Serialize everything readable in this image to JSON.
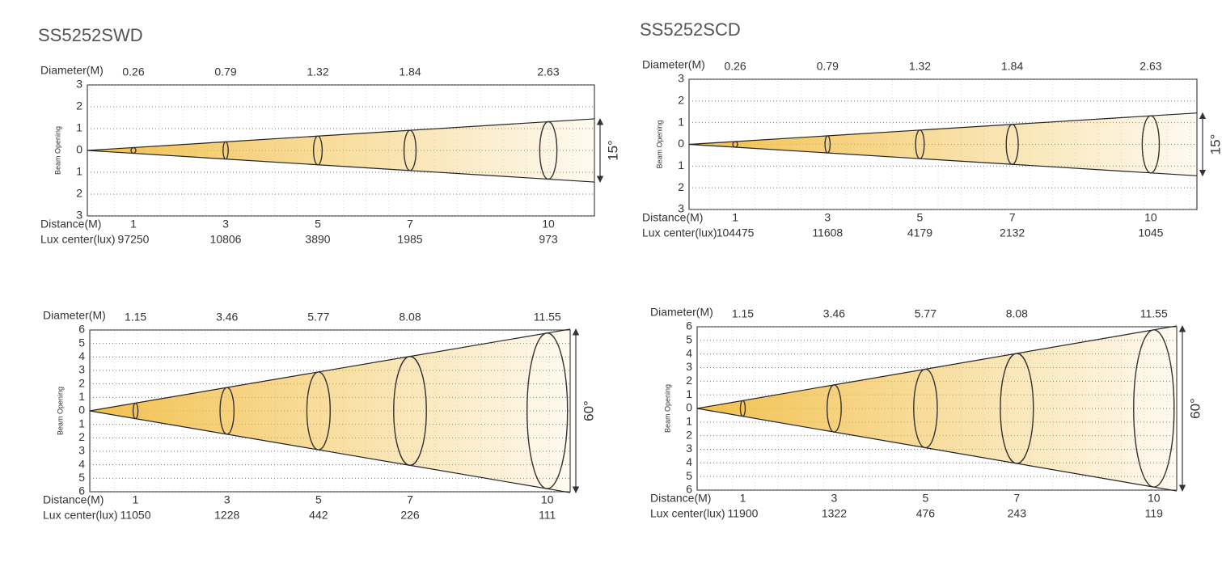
{
  "chart_data": [
    {
      "type": "beam",
      "title": "SS5252SWD",
      "beam_angle_label": "15°",
      "y_label": "Beam Opening",
      "diameter_label": "Diameter(M)",
      "distance_label": "Distance(M)",
      "lux_label": "Lux center(lux)",
      "distances": [
        1,
        3,
        5,
        7,
        10
      ],
      "diameters": [
        0.26,
        0.79,
        1.32,
        1.84,
        2.63
      ],
      "lux": [
        97250,
        10806,
        3890,
        1985,
        973
      ],
      "xlim": [
        0,
        11
      ],
      "ylim": [
        -3,
        3
      ],
      "yticks": [
        {
          "value": 3,
          "label": "3"
        },
        {
          "value": 2,
          "label": "2"
        },
        {
          "value": 1,
          "label": "1"
        },
        0,
        {
          "value": -1,
          "label": "1"
        },
        {
          "value": -2,
          "label": "2"
        },
        {
          "value": -3,
          "label": "3"
        }
      ],
      "color": "#f2c14e"
    },
    {
      "type": "beam",
      "title": "SS5252SCD",
      "beam_angle_label": "15°",
      "y_label": "Beam Opening",
      "diameter_label": "Diameter(M)",
      "distance_label": "Distance(M)",
      "lux_label": "Lux center(lux)",
      "distances": [
        1,
        3,
        5,
        7,
        10
      ],
      "diameters": [
        0.26,
        0.79,
        1.32,
        1.84,
        2.63
      ],
      "lux": [
        104475,
        11608,
        4179,
        2132,
        1045
      ],
      "xlim": [
        0,
        11
      ],
      "ylim": [
        -3,
        3
      ],
      "yticks": [
        {
          "value": 3,
          "label": "3"
        },
        {
          "value": 2,
          "label": "2"
        },
        {
          "value": 1,
          "label": "1"
        },
        0,
        {
          "value": -1,
          "label": "1"
        },
        {
          "value": -2,
          "label": "2"
        },
        {
          "value": -3,
          "label": "3"
        }
      ],
      "color": "#f2c14e"
    },
    {
      "type": "beam",
      "beam_angle_label": "60°",
      "y_label": "Beam Opening",
      "diameter_label": "Diameter(M)",
      "distance_label": "Distance(M)",
      "lux_label": "Lux center(lux)",
      "distances": [
        1,
        3,
        5,
        7,
        10
      ],
      "diameters": [
        1.15,
        3.46,
        5.77,
        8.08,
        11.55
      ],
      "lux": [
        11050,
        1228,
        442,
        226,
        111
      ],
      "xlim": [
        0,
        10.5
      ],
      "ylim": [
        -6,
        6
      ],
      "yticks": [
        {
          "value": 6,
          "label": "6"
        },
        {
          "value": 5,
          "label": "5"
        },
        {
          "value": 4,
          "label": "4"
        },
        {
          "value": 3,
          "label": "3"
        },
        {
          "value": 2,
          "label": "2"
        },
        {
          "value": 1,
          "label": "1"
        },
        0,
        {
          "value": -1,
          "label": "1"
        },
        {
          "value": -2,
          "label": "2"
        },
        {
          "value": -3,
          "label": "3"
        },
        {
          "value": -4,
          "label": "4"
        },
        {
          "value": -5,
          "label": "5"
        },
        {
          "value": -6,
          "label": "6"
        }
      ],
      "color": "#f2c14e"
    },
    {
      "type": "beam",
      "beam_angle_label": "60°",
      "y_label": "Beam Opening",
      "diameter_label": "Diameter(M)",
      "distance_label": "Distance(M)",
      "lux_label": "Lux center(lux)",
      "distances": [
        1,
        3,
        5,
        7,
        10
      ],
      "diameters": [
        1.15,
        3.46,
        5.77,
        8.08,
        11.55
      ],
      "lux": [
        11900,
        1322,
        476,
        243,
        119
      ],
      "xlim": [
        0,
        10.5
      ],
      "ylim": [
        -6,
        6
      ],
      "yticks": [
        {
          "value": 6,
          "label": "6"
        },
        {
          "value": 5,
          "label": "5"
        },
        {
          "value": 4,
          "label": "4"
        },
        {
          "value": 3,
          "label": "3"
        },
        {
          "value": 2,
          "label": "2"
        },
        {
          "value": 1,
          "label": "1"
        },
        0,
        {
          "value": -1,
          "label": "1"
        },
        {
          "value": -2,
          "label": "2"
        },
        {
          "value": -3,
          "label": "3"
        },
        {
          "value": -4,
          "label": "4"
        },
        {
          "value": -5,
          "label": "5"
        },
        {
          "value": -6,
          "label": "6"
        }
      ],
      "color": "#f2c14e"
    }
  ]
}
